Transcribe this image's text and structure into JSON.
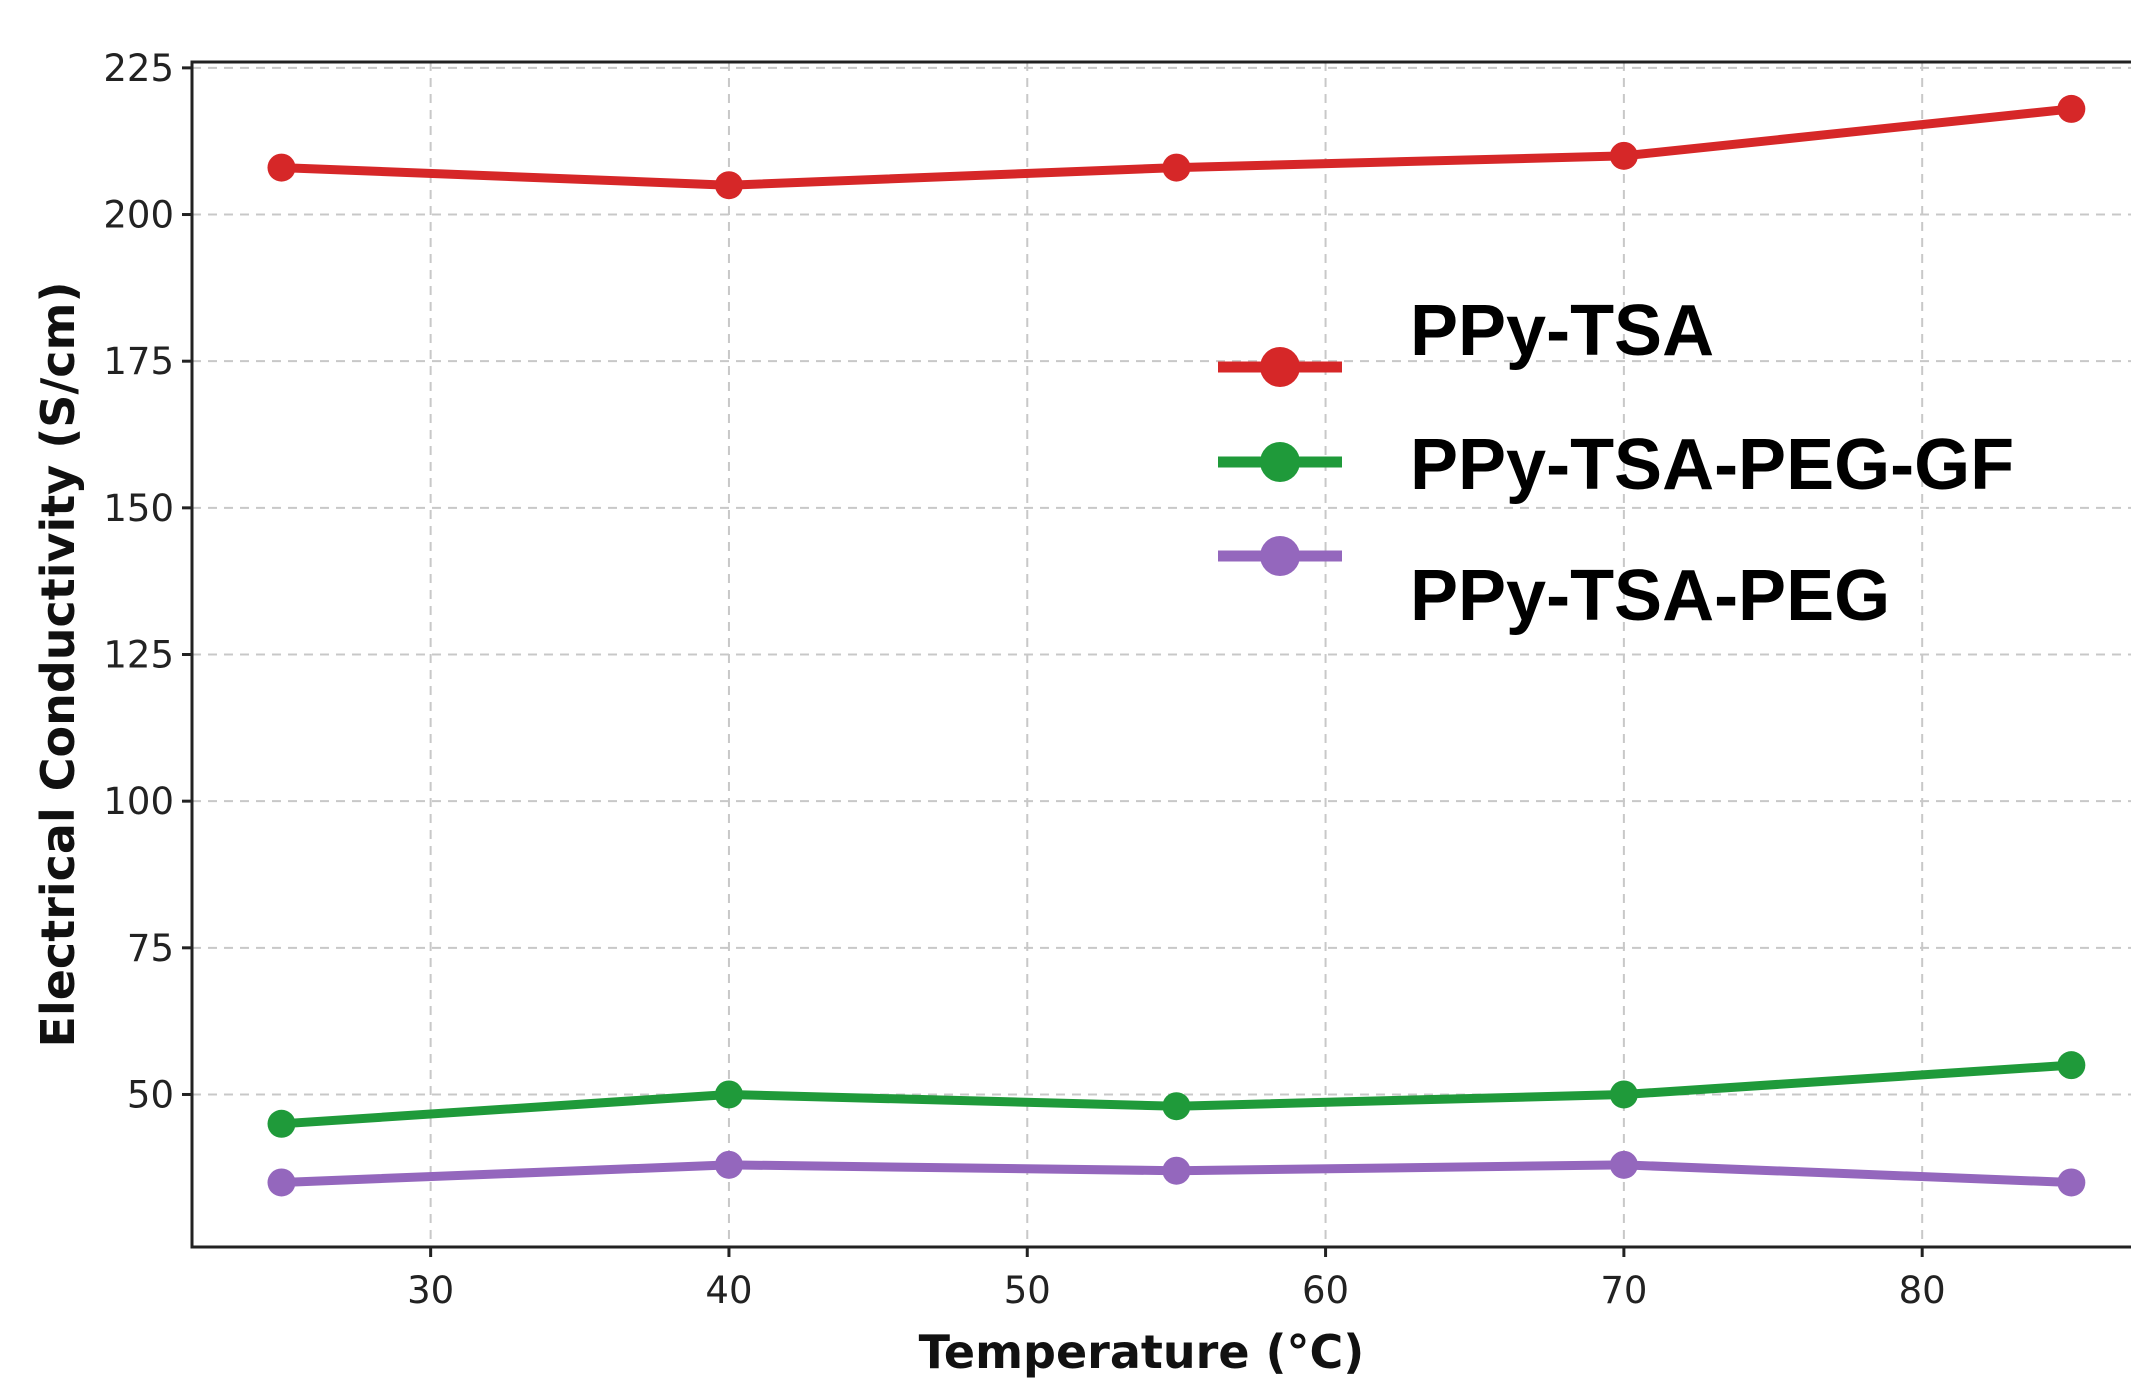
{
  "chart_data": {
    "type": "line",
    "xlabel": "Temperature (°C)",
    "ylabel": "Electrical Conductivity (S/cm)",
    "x": [
      25,
      40,
      55,
      70,
      85
    ],
    "xticks": [
      30,
      40,
      50,
      60,
      70,
      80
    ],
    "yticks": [
      50,
      75,
      100,
      125,
      150,
      175,
      200,
      225
    ],
    "xlim": [
      22,
      87
    ],
    "ylim": [
      24,
      226
    ],
    "grid": true,
    "legend_position": "upper-right",
    "series": [
      {
        "name": "PPy-TSA",
        "color": "#d62728",
        "values": [
          208,
          205,
          208,
          210,
          218
        ]
      },
      {
        "name": "PPy-TSA-PEG-GF",
        "color": "#1f9a3a",
        "values": [
          45,
          50,
          48,
          50,
          55
        ]
      },
      {
        "name": "PPy-TSA-PEG",
        "color": "#9467bd",
        "values": [
          35,
          38,
          37,
          38,
          35
        ]
      }
    ]
  }
}
